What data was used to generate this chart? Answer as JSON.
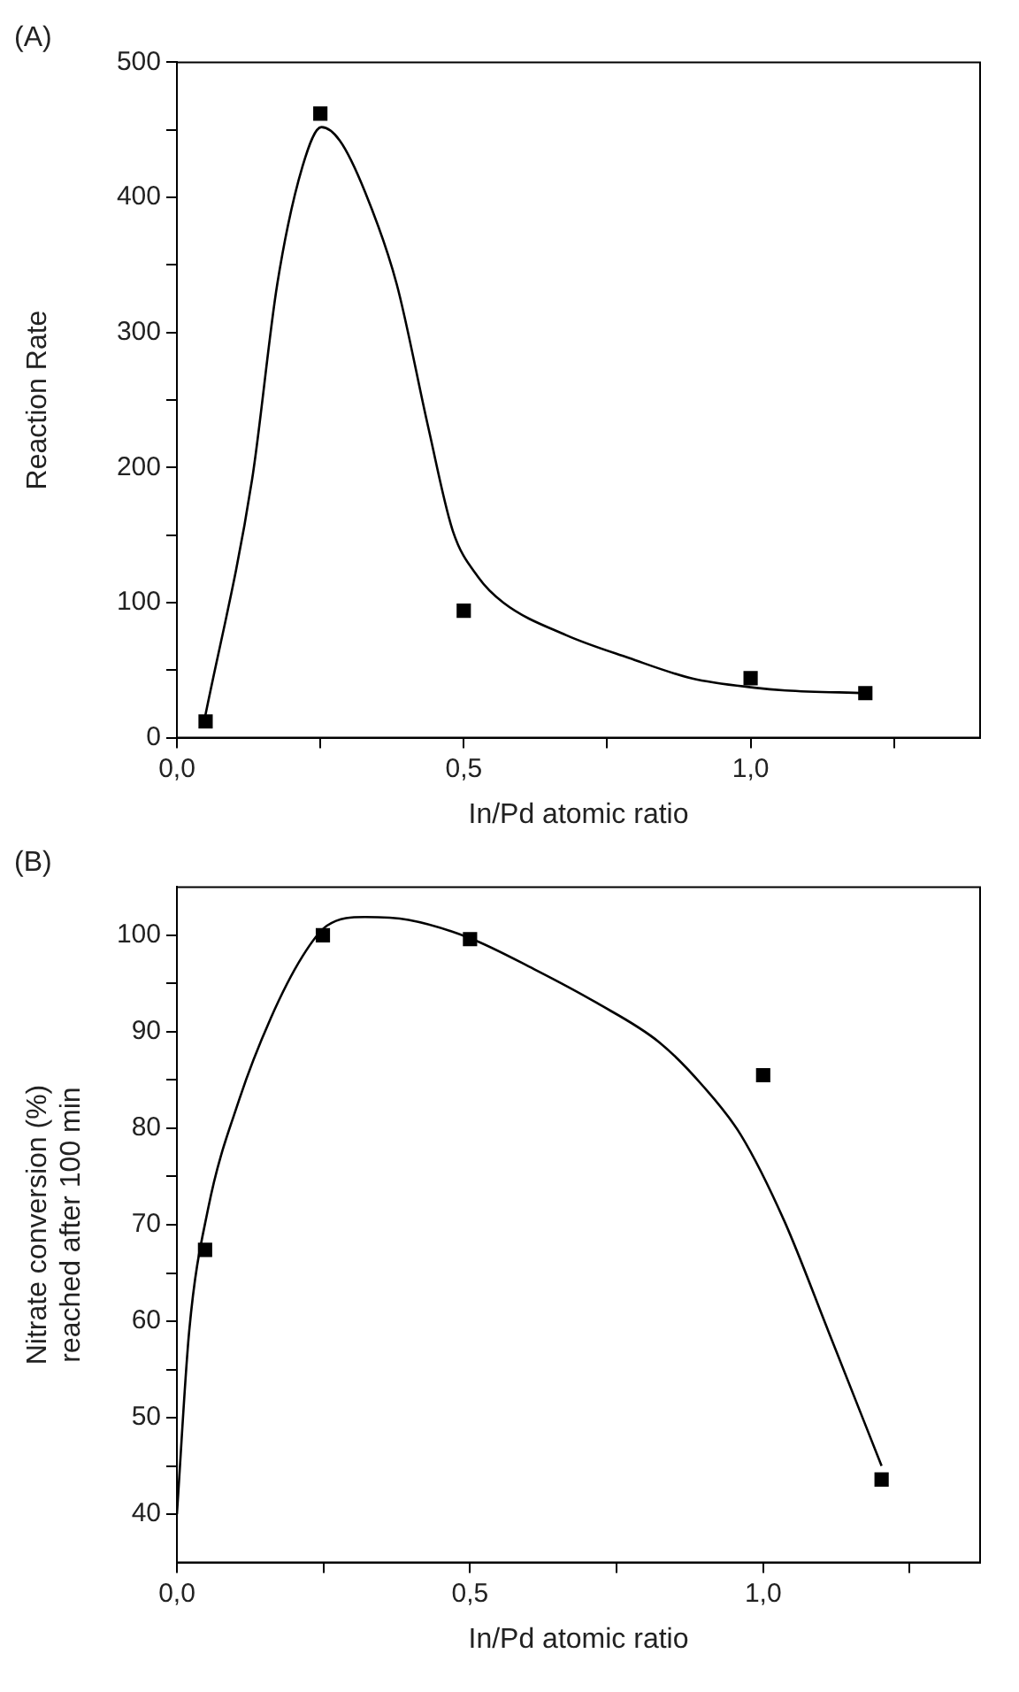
{
  "chart_data": [
    {
      "type": "scatter",
      "title": "(A)",
      "xlabel": "In/Pd atomic ratio",
      "ylabel": "Reaction Rate",
      "grid": false,
      "legend": false,
      "xlim": [
        0,
        1.4
      ],
      "xticks": [
        {
          "value": 0,
          "label": "0,0"
        },
        {
          "value": 0.25,
          "label": null
        },
        {
          "value": 0.5,
          "label": "0,5"
        },
        {
          "value": 0.75,
          "label": null
        },
        {
          "value": 1.0,
          "label": "1,0"
        },
        {
          "value": 1.25,
          "label": null
        }
      ],
      "ylim": [
        0,
        500
      ],
      "yticks": [
        0,
        {
          "value": 50,
          "label": null
        },
        100,
        {
          "value": 150,
          "label": null
        },
        200,
        {
          "value": 250,
          "label": null
        },
        300,
        {
          "value": 350,
          "label": null
        },
        400,
        {
          "value": 450,
          "label": null
        },
        500
      ],
      "series": [
        {
          "type": "scatter",
          "marker": "square",
          "color": "#000000",
          "x": [
            0.05,
            0.25,
            0.5,
            1.0,
            1.2
          ],
          "values": [
            12,
            462,
            94,
            44,
            33
          ]
        },
        {
          "type": "line",
          "marker": "none",
          "line_style": "solid",
          "color": "#000000",
          "x": [
            0.047,
            0.131,
            0.175,
            0.219,
            0.252,
            0.284,
            0.328,
            0.383,
            0.438,
            0.481,
            0.525,
            0.569,
            0.678,
            0.788,
            0.897,
            1.007,
            1.061,
            1.2
          ],
          "values": [
            11,
            191,
            336,
            423,
            452,
            442,
            404,
            336,
            230,
            153,
            119,
            100,
            76,
            59,
            44,
            37,
            35,
            33
          ]
        }
      ]
    },
    {
      "type": "scatter",
      "title": "(B)",
      "xlabel": "In/Pd atomic ratio",
      "ylabel": "Nitrate conversion (%)\nreached after 100 min",
      "grid": false,
      "legend": false,
      "xlim": [
        0,
        1.37
      ],
      "xticks": [
        {
          "value": 0,
          "label": "0,0"
        },
        {
          "value": 0.25,
          "label": null
        },
        {
          "value": 0.5,
          "label": "0,5"
        },
        {
          "value": 0.75,
          "label": null
        },
        {
          "value": 1.0,
          "label": "1,0"
        },
        {
          "value": 1.25,
          "label": null
        }
      ],
      "ylim": [
        35,
        105
      ],
      "yticks": [
        40,
        {
          "value": 45,
          "label": null
        },
        50,
        {
          "value": 55,
          "label": null
        },
        60,
        {
          "value": 65,
          "label": null
        },
        70,
        {
          "value": 75,
          "label": null
        },
        80,
        {
          "value": 85,
          "label": null
        },
        90,
        {
          "value": 95,
          "label": null
        },
        100
      ],
      "series": [
        {
          "type": "scatter",
          "marker": "square",
          "color": "#000000",
          "x": [
            0.048,
            0.249,
            0.5,
            1.0,
            1.202
          ],
          "values": [
            67.4,
            100,
            99.6,
            85.5,
            43.6
          ]
        },
        {
          "type": "line",
          "marker": "none",
          "line_style": "solid",
          "color": "#000000",
          "x": [
            0.0,
            0.021,
            0.053,
            0.107,
            0.16,
            0.214,
            0.256,
            0.321,
            0.395,
            0.5,
            0.609,
            0.716,
            0.823,
            0.897,
            0.962,
            1.036,
            1.111,
            1.202
          ],
          "values": [
            40,
            59,
            71.6,
            83.1,
            91.4,
            97.8,
            101,
            101.9,
            101.6,
            99.7,
            96.5,
            93,
            88.9,
            84.4,
            79.3,
            70.4,
            59,
            45
          ]
        }
      ]
    }
  ]
}
